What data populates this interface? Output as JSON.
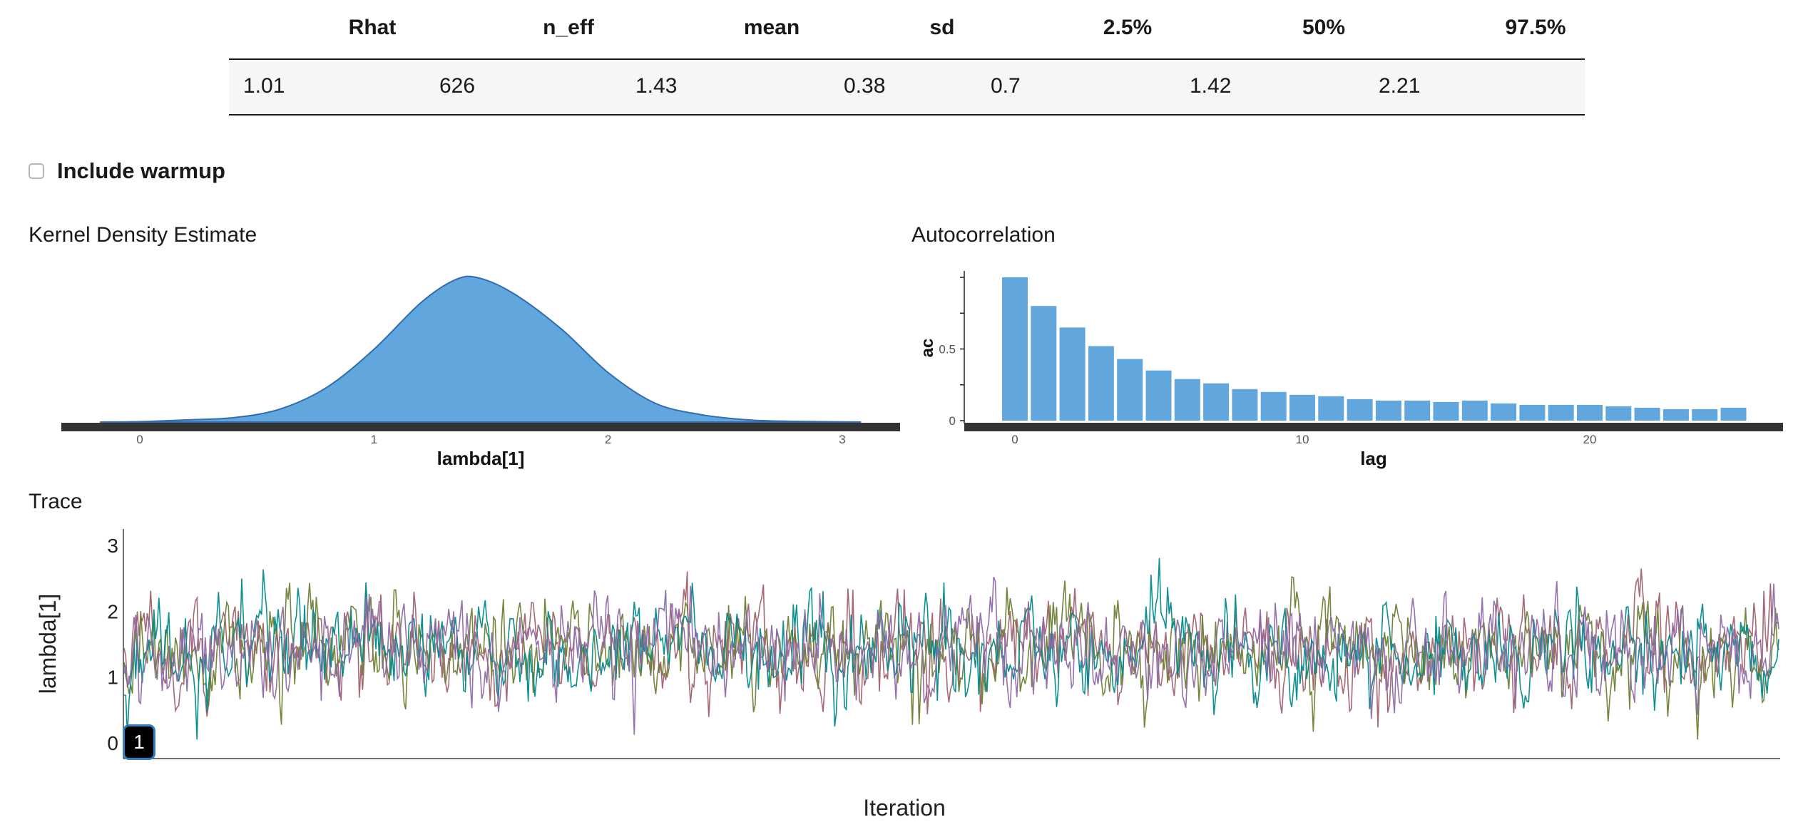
{
  "summary_table": {
    "columns": [
      "Rhat",
      "n_eff",
      "mean",
      "sd",
      "2.5%",
      "50%",
      "97.5%"
    ],
    "row": [
      "1.01",
      "626",
      "1.43",
      "0.38",
      "0.7",
      "1.42",
      "2.21"
    ]
  },
  "warmup_checkbox": {
    "label": "Include warmup",
    "checked": false
  },
  "density_panel": {
    "title": "Kernel Density Estimate",
    "fill_color": "#62a6de",
    "line_color": "#2f6db0"
  },
  "autocorr_panel": {
    "title": "Autocorrelation",
    "bar_color": "#62a6de"
  },
  "trace_panel": {
    "title": "Trace",
    "chain_colors": [
      "#a0616c",
      "#6b7f33",
      "#008a8c",
      "#8f6aa8"
    ],
    "badge_label": "1"
  },
  "chart_data": [
    {
      "type": "area",
      "title": "",
      "xlabel": "lambda[1]",
      "ylabel": "",
      "x_ticks": [
        "0",
        "1",
        "2",
        "3"
      ],
      "xlim": [
        -0.3,
        3.1
      ],
      "x": [
        -0.17,
        0.0,
        0.2,
        0.4,
        0.6,
        0.8,
        1.0,
        1.2,
        1.35,
        1.45,
        1.6,
        1.8,
        2.0,
        2.2,
        2.4,
        2.6,
        2.8,
        3.08
      ],
      "y": [
        0.0,
        0.003,
        0.015,
        0.03,
        0.09,
        0.24,
        0.5,
        0.82,
        0.98,
        0.99,
        0.88,
        0.64,
        0.34,
        0.13,
        0.05,
        0.015,
        0.005,
        0.0
      ],
      "grid": false
    },
    {
      "type": "bar",
      "title": "",
      "xlabel": "lag",
      "ylabel": "ac",
      "x_ticks": [
        "0",
        "10",
        "20"
      ],
      "y_ticks": [
        "0",
        "0.5"
      ],
      "categories": [
        0,
        1,
        2,
        3,
        4,
        5,
        6,
        7,
        8,
        9,
        10,
        11,
        12,
        13,
        14,
        15,
        16,
        17,
        18,
        19,
        20,
        21,
        22,
        23,
        24,
        25
      ],
      "values": [
        1.0,
        0.8,
        0.65,
        0.52,
        0.43,
        0.35,
        0.29,
        0.26,
        0.22,
        0.2,
        0.18,
        0.17,
        0.15,
        0.14,
        0.14,
        0.13,
        0.14,
        0.12,
        0.11,
        0.11,
        0.11,
        0.1,
        0.09,
        0.08,
        0.08,
        0.09
      ],
      "ylim": [
        0,
        1.05
      ],
      "grid": false
    },
    {
      "type": "line",
      "title": "",
      "xlabel": "Iteration",
      "ylabel": "lambda[1]",
      "y_ticks": [
        "0",
        "1",
        "2",
        "3"
      ],
      "ylim": [
        0,
        3.2
      ],
      "xlim": [
        0,
        1000
      ],
      "series_count": 4,
      "level_mean": 1.43,
      "level_sd": 0.38,
      "grid": false
    }
  ]
}
